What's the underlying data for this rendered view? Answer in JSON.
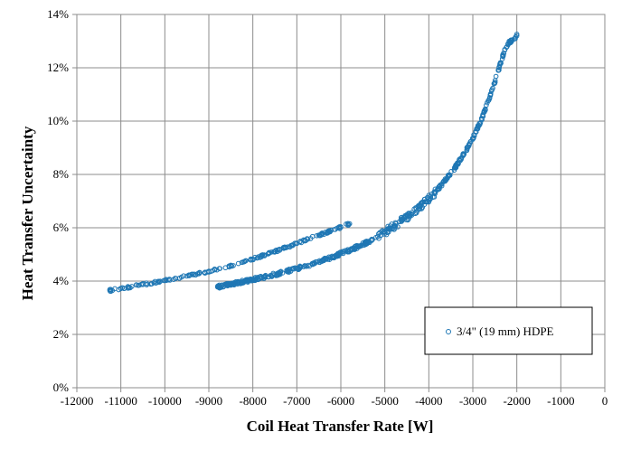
{
  "chart_data": {
    "type": "scatter",
    "xlabel": "Coil Heat Transfer Rate [W]",
    "ylabel": "Heat Transfer Uncertainty",
    "xlim": [
      -12000,
      0
    ],
    "ylim": [
      0,
      14
    ],
    "x_ticks": [
      "-12000",
      "-11000",
      "-10000",
      "-9000",
      "-8000",
      "-7000",
      "-6000",
      "-5000",
      "-4000",
      "-3000",
      "-2000",
      "-1000",
      "0"
    ],
    "y_ticks": [
      "0%",
      "2%",
      "4%",
      "6%",
      "8%",
      "10%",
      "12%",
      "14%"
    ],
    "grid": true,
    "legend_position": "lower-right",
    "marker_color": "#1f77b4",
    "series": [
      {
        "name": "3/4\" (19 mm) HDPE",
        "branches": [
          {
            "x": [
              -11250,
              -11000,
              -10750,
              -10500,
              -10250,
              -10000,
              -9750,
              -9500,
              -9250,
              -9000,
              -8750,
              -8500,
              -8250,
              -8000,
              -7750,
              -7500,
              -7250,
              -7000,
              -6750,
              -6500,
              -6250,
              -6000,
              -5800
            ],
            "y": [
              3.65,
              3.72,
              3.8,
              3.87,
              3.94,
              4.02,
              4.1,
              4.19,
              4.28,
              4.37,
              4.47,
              4.58,
              4.7,
              4.83,
              4.97,
              5.11,
              5.26,
              5.41,
              5.57,
              5.72,
              5.87,
              6.02,
              6.15
            ]
          },
          {
            "x": [
              -8800,
              -8600,
              -8400,
              -8200,
              -8000,
              -7800,
              -7600,
              -7400,
              -7200,
              -7000,
              -6800,
              -6600,
              -6400,
              -6200,
              -6000,
              -5800,
              -5600,
              -5400,
              -5200,
              -5000,
              -4800,
              -4600,
              -4400,
              -4200,
              -4000,
              -3800,
              -3600,
              -3400,
              -3200,
              -3000,
              -2800,
              -2600,
              -2400,
              -2300,
              -2200,
              -2100,
              -2000
            ],
            "y": [
              3.78,
              3.85,
              3.92,
              3.99,
              4.06,
              4.13,
              4.21,
              4.29,
              4.38,
              4.47,
              4.57,
              4.67,
              4.78,
              4.9,
              5.03,
              5.16,
              5.3,
              5.46,
              5.64,
              5.84,
              6.06,
              6.28,
              6.52,
              6.79,
              7.08,
              7.43,
              7.83,
              8.27,
              8.77,
              9.36,
              10.08,
              10.96,
              12.0,
              12.55,
              12.9,
              13.05,
              13.2
            ]
          }
        ]
      }
    ]
  }
}
